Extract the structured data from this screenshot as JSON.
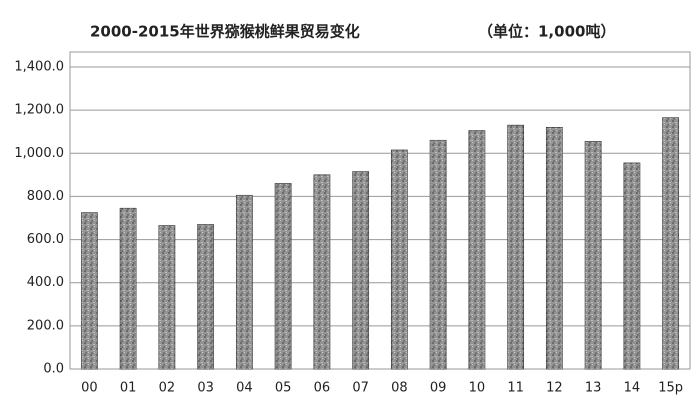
{
  "chart_data": {
    "type": "bar",
    "title": "2000-2015年世界猕猴桃鲜果贸易变化",
    "subtitle": "（单位：1,000吨）",
    "categories": [
      "00",
      "01",
      "02",
      "03",
      "04",
      "05",
      "06",
      "07",
      "08",
      "09",
      "10",
      "11",
      "12",
      "13",
      "14",
      "15p"
    ],
    "values": [
      725,
      745,
      665,
      670,
      805,
      860,
      900,
      915,
      1015,
      1060,
      1105,
      1130,
      1120,
      1055,
      955,
      1165
    ],
    "color": "#8c8c8c",
    "ylim": [
      0,
      1400
    ],
    "yticks": [
      {
        "value": 0,
        "label": "0.0"
      },
      {
        "value": 200,
        "label": "200.0"
      },
      {
        "value": 400,
        "label": "400.0"
      },
      {
        "value": 600,
        "label": "600.0"
      },
      {
        "value": 800,
        "label": "800.0"
      },
      {
        "value": 1000,
        "label": "1,000.0"
      },
      {
        "value": 1200,
        "label": "1,200.0"
      },
      {
        "value": 1400,
        "label": "1,400.0"
      }
    ],
    "grid": true
  }
}
